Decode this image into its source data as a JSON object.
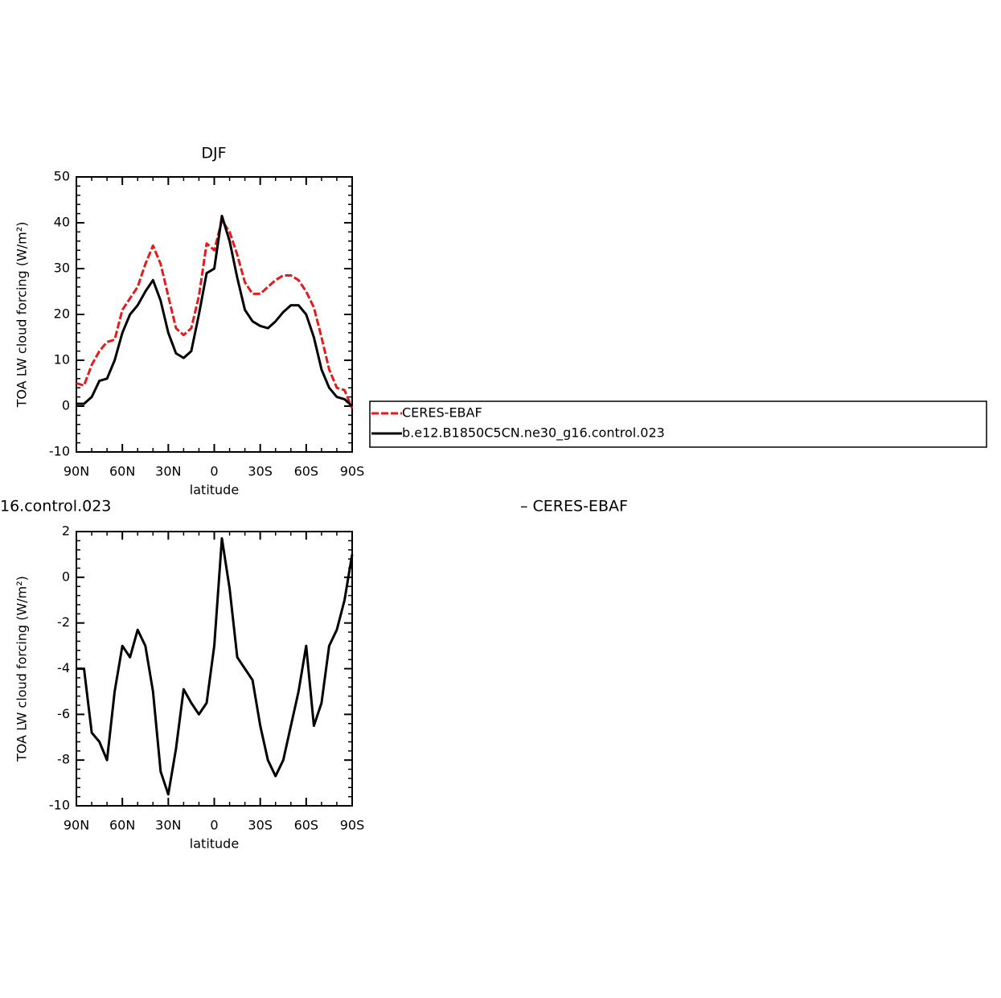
{
  "chart_data": [
    {
      "type": "line",
      "title": "DJF",
      "ylabel": "TOA LW cloud forcing (W/m²)",
      "xlabel": "latitude",
      "x": [
        90,
        85,
        80,
        75,
        70,
        65,
        60,
        55,
        50,
        45,
        40,
        35,
        30,
        25,
        20,
        15,
        10,
        5,
        0,
        -5,
        -10,
        -15,
        -20,
        -25,
        -30,
        -35,
        -40,
        -45,
        -50,
        -55,
        -60,
        -65,
        -70,
        -75,
        -80,
        -85,
        -90
      ],
      "xlim": [
        90,
        -90
      ],
      "xticks": [
        {
          "value": 90,
          "label": "90N"
        },
        {
          "value": 60,
          "label": "60N"
        },
        {
          "value": 30,
          "label": "30N"
        },
        0,
        {
          "value": -30,
          "label": "30S"
        },
        {
          "value": -60,
          "label": "60S"
        },
        {
          "value": -90,
          "label": "90S"
        }
      ],
      "ylim": [
        -10,
        50
      ],
      "yticks": [
        -10,
        0,
        10,
        20,
        30,
        40,
        50
      ],
      "legend": "right",
      "series": [
        {
          "name": "CERES-EBAF",
          "color": "#e41a1c",
          "style": "dashed",
          "values": [
            5,
            4.5,
            9,
            12,
            14,
            14.5,
            21,
            23.5,
            26,
            31,
            35,
            31,
            24,
            17,
            15.5,
            17,
            24,
            35.5,
            34,
            40.5,
            38,
            33,
            27,
            24.5,
            24.5,
            26,
            27.5,
            28.5,
            28.5,
            27.5,
            25,
            21.5,
            15,
            8,
            4,
            3.5,
            -0.5
          ]
        },
        {
          "name": "b.e12.B1850C5CN.ne30_g16.control.023",
          "color": "#000000",
          "style": "solid",
          "values": [
            0.5,
            0.5,
            2,
            5.5,
            6,
            10,
            16,
            20,
            22,
            25,
            27.5,
            23,
            16,
            11.5,
            10.5,
            12,
            20,
            29,
            30,
            41.5,
            36,
            28,
            21,
            18.5,
            17.5,
            17,
            18.5,
            20.5,
            22,
            22,
            20,
            15,
            8,
            4,
            2,
            1.5,
            0
          ]
        }
      ]
    },
    {
      "type": "line",
      "title_left": "16.control.023",
      "title_right": "– CERES-EBAF",
      "ylabel": "TOA LW cloud forcing (W/m²)",
      "xlabel": "latitude",
      "x": [
        90,
        85,
        80,
        75,
        70,
        65,
        60,
        55,
        50,
        45,
        40,
        35,
        30,
        25,
        20,
        15,
        10,
        5,
        0,
        -5,
        -10,
        -15,
        -20,
        -25,
        -30,
        -35,
        -40,
        -45,
        -50,
        -55,
        -60,
        -65,
        -70,
        -75,
        -80,
        -85,
        -90
      ],
      "xlim": [
        90,
        -90
      ],
      "xticks": [
        {
          "value": 90,
          "label": "90N"
        },
        {
          "value": 60,
          "label": "60N"
        },
        {
          "value": 30,
          "label": "30N"
        },
        0,
        {
          "value": -30,
          "label": "30S"
        },
        {
          "value": -60,
          "label": "60S"
        },
        {
          "value": -90,
          "label": "90S"
        }
      ],
      "ylim": [
        -10,
        2
      ],
      "yticks": [
        -10,
        -8,
        -6,
        -4,
        -2,
        0,
        2
      ],
      "series": [
        {
          "color": "#000000",
          "style": "solid",
          "values": [
            -4,
            -4,
            -6.8,
            -7.2,
            -8,
            -5,
            -3,
            -3.5,
            -2.3,
            -3,
            -5,
            -8.5,
            -9.5,
            -7.5,
            -4.9,
            -5.5,
            -6,
            -5.5,
            -3,
            1.7,
            -0.5,
            -3.5,
            -4,
            -4.5,
            -6.5,
            -8,
            -8.7,
            -8,
            -6.5,
            -5,
            -3,
            -6.5,
            -5.5,
            -3,
            -2.3,
            -1,
            1
          ]
        }
      ]
    }
  ]
}
